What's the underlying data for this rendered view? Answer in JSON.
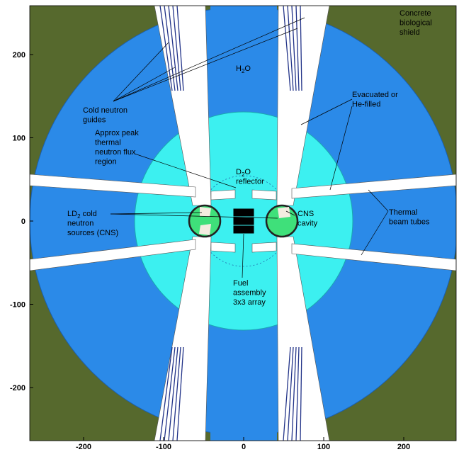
{
  "axes": {
    "xticks": [
      -200,
      -100,
      0,
      100,
      200
    ],
    "yticks": [
      200,
      100,
      0,
      -100,
      -200
    ]
  },
  "labels": {
    "shield": [
      "Concrete",
      "biological",
      "shield"
    ],
    "h2o": [
      {
        "pre": "H",
        "sub": "2",
        "post": "O"
      }
    ],
    "guides": [
      "Cold neutron",
      "guides"
    ],
    "evacuated": [
      "Evacuated or",
      "He-filled"
    ],
    "approx": [
      "Approx peak",
      "thermal",
      "neutron flux",
      "region"
    ],
    "d2o": [
      {
        "pre": "D",
        "sub": "2",
        "post": "O"
      },
      "reflector"
    ],
    "ld2": [
      {
        "pre": "LD",
        "sub": "2",
        "post": " cold"
      },
      "neutron",
      "sources (CNS)"
    ],
    "cns": [
      "CNS",
      "cavity"
    ],
    "thermal": [
      "Thermal",
      "beam tubes"
    ],
    "fuel": [
      "Fuel",
      "assembly",
      "3x3 array"
    ]
  }
}
